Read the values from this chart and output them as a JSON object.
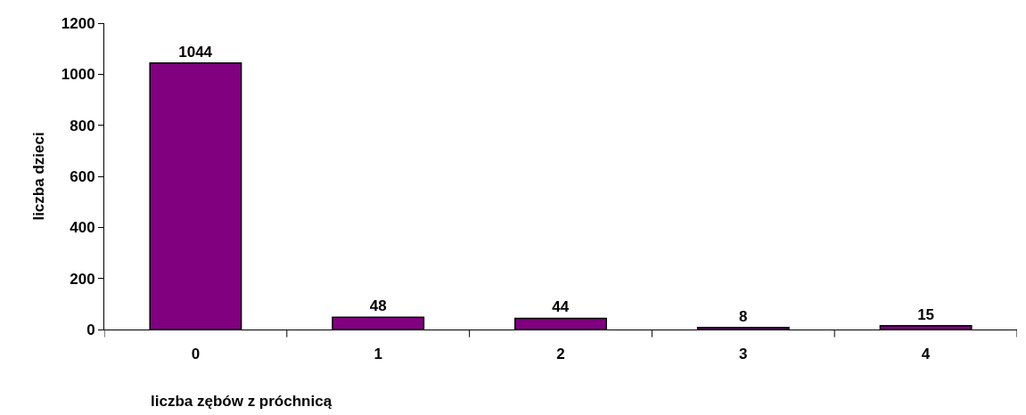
{
  "chart_data": {
    "type": "bar",
    "xlabel": "liczba zębów z próchnicą",
    "ylabel": "liczba dzieci",
    "categories": [
      "0",
      "1",
      "2",
      "3",
      "4"
    ],
    "values": [
      1044,
      48,
      44,
      8,
      15
    ],
    "color": "#800080",
    "ylim": [
      0,
      1200
    ],
    "yticks": [
      0,
      200,
      400,
      600,
      800,
      1000,
      1200
    ],
    "data_labels": true
  }
}
